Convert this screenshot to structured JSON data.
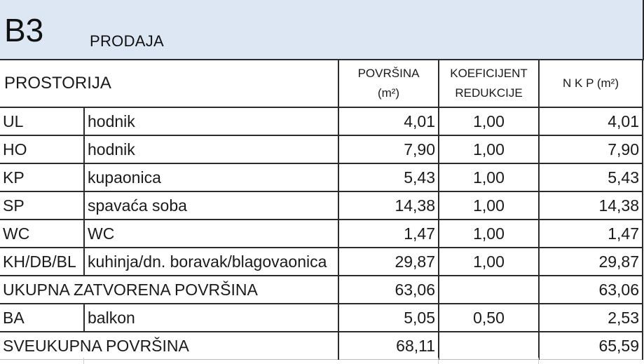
{
  "header": {
    "unit_code": "B3",
    "status": "PRODAJA"
  },
  "columns": {
    "room": "PROSTORIJA",
    "area_line1": "POVRŠINA",
    "area_line2": "(m²)",
    "coef_line1": "KOEFICIJENT",
    "coef_line2": "REDUKCIJE",
    "nkp": "N K P (m²)"
  },
  "rooms": [
    {
      "code": "UL",
      "name": "hodnik",
      "area": "4,01",
      "coef": "1,00",
      "nkp": "4,01"
    },
    {
      "code": "HO",
      "name": "hodnik",
      "area": "7,90",
      "coef": "1,00",
      "nkp": "7,90"
    },
    {
      "code": "KP",
      "name": "kupaonica",
      "area": "5,43",
      "coef": "1,00",
      "nkp": "5,43"
    },
    {
      "code": "SP",
      "name": "spavaća soba",
      "area": "14,38",
      "coef": "1,00",
      "nkp": "14,38"
    },
    {
      "code": "WC",
      "name": "WC",
      "area": "1,47",
      "coef": "1,00",
      "nkp": "1,47"
    },
    {
      "code": "KH/DB/BL",
      "name": "kuhinja/dn. boravak/blagovaonica",
      "area": "29,87",
      "coef": "1,00",
      "nkp": "29,87"
    }
  ],
  "closed_total": {
    "label": "UKUPNA ZATVORENA POVRŠINA",
    "area": "63,06",
    "coef": "",
    "nkp": "63,06"
  },
  "balcony": {
    "code": "BA",
    "name": "balkon",
    "area": "5,05",
    "coef": "0,50",
    "nkp": "2,53"
  },
  "grand_total": {
    "label": "SVEUKUPNA POVRŠINA",
    "area": "68,11",
    "coef": "",
    "nkp": "65,59"
  },
  "colors": {
    "header_band": "#dde7f3",
    "grid": "#2b2b2b"
  }
}
